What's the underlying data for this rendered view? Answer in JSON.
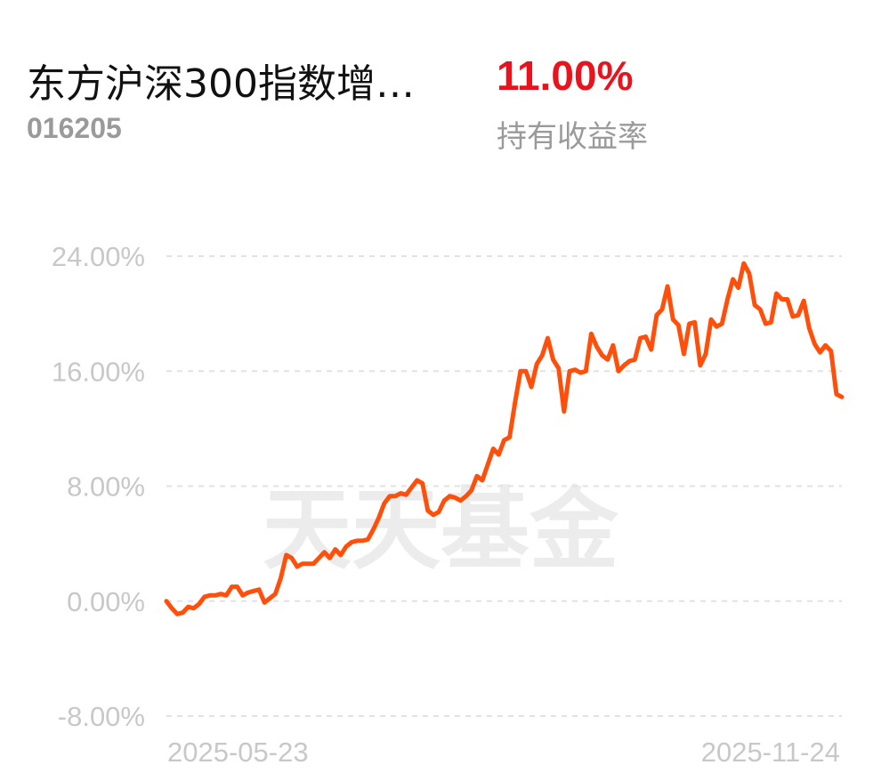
{
  "header": {
    "fund_name": "东方沪深300指数增…",
    "fund_code": "016205",
    "return_value": "11.00%",
    "return_label": "持有收益率"
  },
  "watermark": "天天基金",
  "colors": {
    "line": "#ff4f0a",
    "return_value": "#e8131c",
    "grid": "#e2e2e2",
    "tick_text": "#c8c8c8"
  },
  "chart_data": {
    "type": "line",
    "title": "",
    "xlabel": "",
    "ylabel": "",
    "x_range": [
      "2025-05-23",
      "2025-11-24"
    ],
    "x_tick_labels": [
      "2025-05-23",
      "2025-11-24"
    ],
    "y_ticks": [
      24,
      16,
      8,
      0,
      -8
    ],
    "y_tick_labels": [
      "24.00%",
      "16.00%",
      "8.00%",
      "0.00%",
      "-8.00%"
    ],
    "ylim": [
      -8,
      24
    ],
    "grid": "horizontal dashed",
    "series": [
      {
        "values": [
          0.0,
          -0.5,
          -0.9,
          -0.8,
          -0.4,
          -0.5,
          -0.2,
          0.3,
          0.4,
          0.4,
          0.5,
          0.4,
          1.0,
          1.0,
          0.4,
          0.6,
          0.7,
          0.8,
          -0.1,
          0.2,
          0.5,
          1.6,
          3.2,
          3.0,
          2.4,
          2.6,
          2.6,
          2.6,
          3.0,
          3.4,
          3.0,
          3.6,
          3.2,
          3.8,
          4.1,
          4.2,
          4.2,
          4.3,
          5.0,
          5.8,
          6.8,
          7.3,
          7.3,
          7.5,
          7.4,
          7.9,
          8.4,
          8.2,
          6.3,
          6.0,
          6.2,
          7.0,
          7.3,
          7.2,
          7.0,
          7.3,
          7.7,
          8.7,
          8.4,
          9.5,
          10.6,
          10.2,
          11.2,
          11.4,
          13.8,
          16.0,
          16.0,
          14.9,
          16.5,
          17.1,
          18.3,
          16.8,
          16.2,
          13.2,
          16.0,
          16.1,
          15.9,
          16.0,
          18.6,
          17.7,
          17.1,
          16.8,
          17.8,
          16.0,
          16.4,
          16.7,
          16.8,
          18.3,
          18.4,
          17.5,
          19.9,
          20.3,
          21.9,
          19.6,
          19.2,
          17.2,
          19.3,
          19.4,
          16.4,
          17.2,
          19.6,
          19.1,
          19.3,
          21.0,
          22.4,
          21.8,
          23.5,
          22.8,
          20.6,
          20.3,
          19.3,
          19.4,
          21.4,
          21.0,
          21.0,
          19.8,
          19.9,
          20.9,
          19.0,
          17.9,
          17.3,
          17.8,
          17.4,
          14.4,
          14.2
        ]
      }
    ]
  }
}
